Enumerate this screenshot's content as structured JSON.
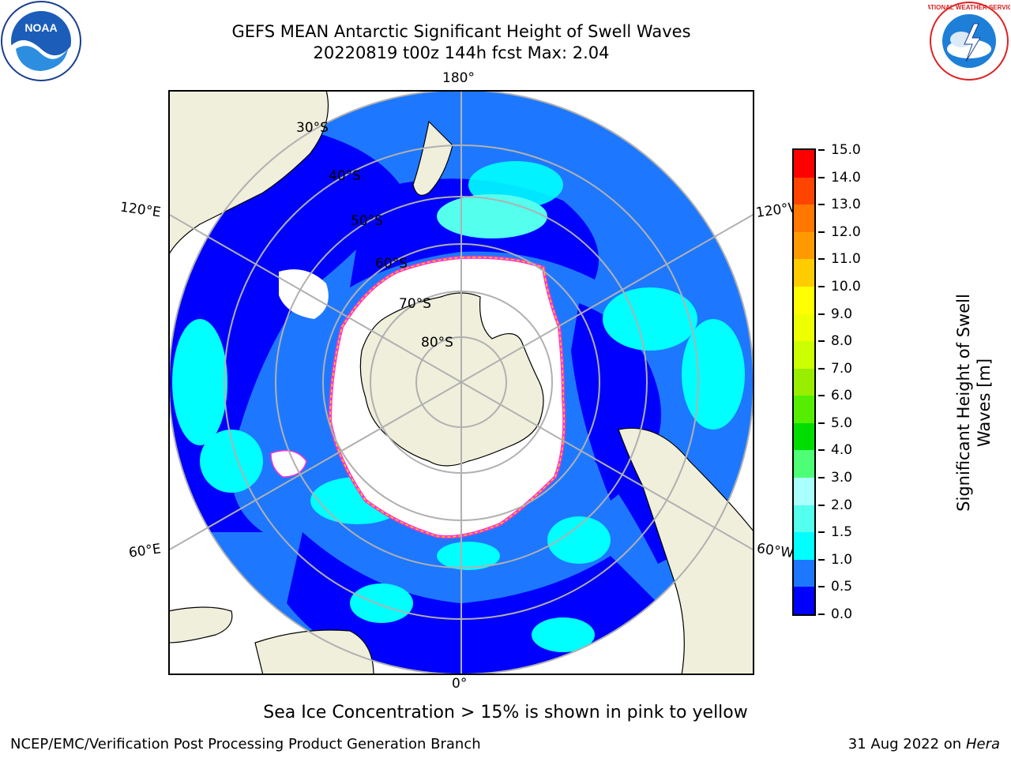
{
  "header": {
    "title_line1": "GEFS MEAN Antarctic Significant Height of Swell Waves",
    "title_line2": "20220819 t00z 144h fcst   Max: 2.04"
  },
  "logos": {
    "left": "noaa-logo",
    "left_text": "NOAA",
    "right": "national-weather-service-logo",
    "right_text": "NATIONAL WEATHER SERVICE"
  },
  "map": {
    "projection": "south-polar-stereographic",
    "longitude_labels": {
      "top": "180°",
      "bottom": "0°",
      "upper_left": "120°E",
      "lower_left": "60°E",
      "upper_right": "120°W",
      "lower_right": "60°W"
    },
    "latitude_labels": [
      "30°S",
      "40°S",
      "50°S",
      "60°S",
      "70°S",
      "80°S"
    ],
    "colors": {
      "land": "#efefdc",
      "ice": "#ffffff",
      "grid": "#b0b0b0",
      "ice_edge": [
        "#ff33cc",
        "#ffcc00"
      ]
    }
  },
  "colorbar": {
    "title": "Significant Height of Swell Waves [m]",
    "ticks": [
      "0.0",
      "0.5",
      "1.0",
      "1.5",
      "2.0",
      "3.0",
      "4.0",
      "5.0",
      "6.0",
      "7.0",
      "8.0",
      "9.0",
      "10.0",
      "11.0",
      "12.0",
      "13.0",
      "14.0",
      "15.0"
    ],
    "colors": [
      "#0000ff",
      "#1e78ff",
      "#00ffff",
      "#55ffee",
      "#aaffff",
      "#4dff77",
      "#00dd00",
      "#55ee00",
      "#99ee00",
      "#ccff00",
      "#eeff00",
      "#ffff00",
      "#ffcc00",
      "#ff9900",
      "#ff7700",
      "#ff4400",
      "#ff0000"
    ]
  },
  "footer": {
    "note": "Sea Ice Concentration > 15% is shown in pink to yellow",
    "credit": "NCEP/EMC/Verification Post Processing Product Generation Branch",
    "date": "31 Aug 2022 on",
    "host": "Hera"
  }
}
